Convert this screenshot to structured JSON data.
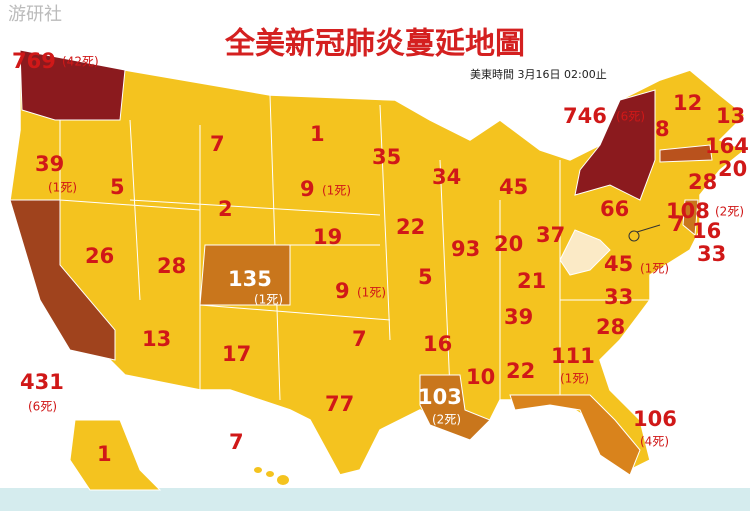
{
  "header": {
    "watermark": "游研社",
    "title": "全美新冠肺炎蔓延地圖",
    "timestamp": "美東時間 3月16日 02:00止"
  },
  "states": [
    {
      "count": 769,
      "deaths": "(42死)"
    },
    {
      "count": 39,
      "deaths": "(1死)"
    },
    {
      "count": 431,
      "deaths": "(6死)"
    },
    {
      "count": 5
    },
    {
      "count": 26
    },
    {
      "count": 28
    },
    {
      "count": 13
    },
    {
      "count": 7
    },
    {
      "count": 2
    },
    {
      "count": 135,
      "deaths": "(1死)"
    },
    {
      "count": 17
    },
    {
      "count": 1
    },
    {
      "count": 9,
      "deaths": "(1死)"
    },
    {
      "count": 19
    },
    {
      "count": 9,
      "deaths": "(1死)"
    },
    {
      "count": 7
    },
    {
      "count": 77
    },
    {
      "count": 35
    },
    {
      "count": 22
    },
    {
      "count": 5
    },
    {
      "count": 16
    },
    {
      "count": 103,
      "deaths": "(2死)"
    },
    {
      "count": 34
    },
    {
      "count": 93
    },
    {
      "count": 45
    },
    {
      "count": 20
    },
    {
      "count": 37
    },
    {
      "count": 21
    },
    {
      "count": 39
    },
    {
      "count": 10
    },
    {
      "count": 22
    },
    {
      "count": 111,
      "deaths": "(1死)"
    },
    {
      "count": 106,
      "deaths": "(4死)"
    },
    {
      "count": 28
    },
    {
      "count": 33
    },
    {
      "count": 45,
      "deaths": "(1死)"
    },
    {
      "count": 66
    },
    {
      "count": 746,
      "deaths": "(6死)"
    },
    {
      "count": 8
    },
    {
      "count": 12
    },
    {
      "count": 13
    },
    {
      "count": 164
    },
    {
      "count": 20
    },
    {
      "count": 28
    },
    {
      "count": 108,
      "deaths": "(2死)"
    },
    {
      "count": 7
    },
    {
      "count": 16
    },
    {
      "count": 33
    },
    {
      "count": 1
    },
    {
      "count": 7
    }
  ]
}
